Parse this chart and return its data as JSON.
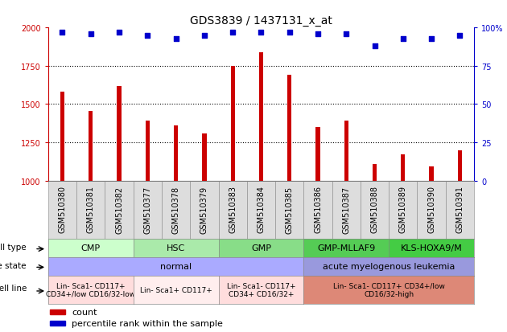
{
  "title": "GDS3839 / 1437131_x_at",
  "samples": [
    "GSM510380",
    "GSM510381",
    "GSM510382",
    "GSM510377",
    "GSM510378",
    "GSM510379",
    "GSM510383",
    "GSM510384",
    "GSM510385",
    "GSM510386",
    "GSM510387",
    "GSM510388",
    "GSM510389",
    "GSM510390",
    "GSM510391"
  ],
  "counts": [
    1580,
    1455,
    1620,
    1390,
    1360,
    1310,
    1750,
    1840,
    1690,
    1350,
    1390,
    1110,
    1170,
    1090,
    1195
  ],
  "percentiles": [
    97,
    96,
    97,
    95,
    93,
    95,
    97,
    97,
    97,
    96,
    96,
    88,
    93,
    93,
    95
  ],
  "ylim_left": [
    1000,
    2000
  ],
  "ylim_right": [
    0,
    100
  ],
  "yticks_left": [
    1000,
    1250,
    1500,
    1750,
    2000
  ],
  "yticks_right": [
    0,
    25,
    50,
    75,
    100
  ],
  "bar_color": "#cc0000",
  "dot_color": "#0000cc",
  "bar_width": 0.15,
  "cell_type_groups": [
    {
      "label": "CMP",
      "start": 0,
      "end": 2,
      "color": "#ccffcc"
    },
    {
      "label": "HSC",
      "start": 3,
      "end": 5,
      "color": "#aaeaaa"
    },
    {
      "label": "GMP",
      "start": 6,
      "end": 8,
      "color": "#88dd88"
    },
    {
      "label": "GMP-MLLAF9",
      "start": 9,
      "end": 11,
      "color": "#55cc55"
    },
    {
      "label": "KLS-HOXA9/M",
      "start": 12,
      "end": 14,
      "color": "#44cc44"
    }
  ],
  "disease_state_groups": [
    {
      "label": "normal",
      "start": 0,
      "end": 8,
      "color": "#aaaaff"
    },
    {
      "label": "acute myelogenous leukemia",
      "start": 9,
      "end": 14,
      "color": "#9999dd"
    }
  ],
  "cell_line_groups": [
    {
      "label": "Lin- Sca1- CD117+\nCD34+/low CD16/32-low",
      "start": 0,
      "end": 2,
      "color": "#ffdddd"
    },
    {
      "label": "Lin- Sca1+ CD117+",
      "start": 3,
      "end": 5,
      "color": "#ffeeee"
    },
    {
      "label": "Lin- Sca1- CD117+\nCD34+ CD16/32+",
      "start": 6,
      "end": 8,
      "color": "#ffdddd"
    },
    {
      "label": "Lin- Sca1- CD117+ CD34+/low\nCD16/32-high",
      "start": 9,
      "end": 14,
      "color": "#dd8877"
    }
  ],
  "legend_items": [
    {
      "color": "#cc0000",
      "label": "count"
    },
    {
      "color": "#0000cc",
      "label": "percentile rank within the sample"
    }
  ],
  "grid_color": "black",
  "xlabel_bg": "#dddddd",
  "label_fontsize": 7.5,
  "tick_fontsize": 7,
  "annot_fontsize": 8
}
